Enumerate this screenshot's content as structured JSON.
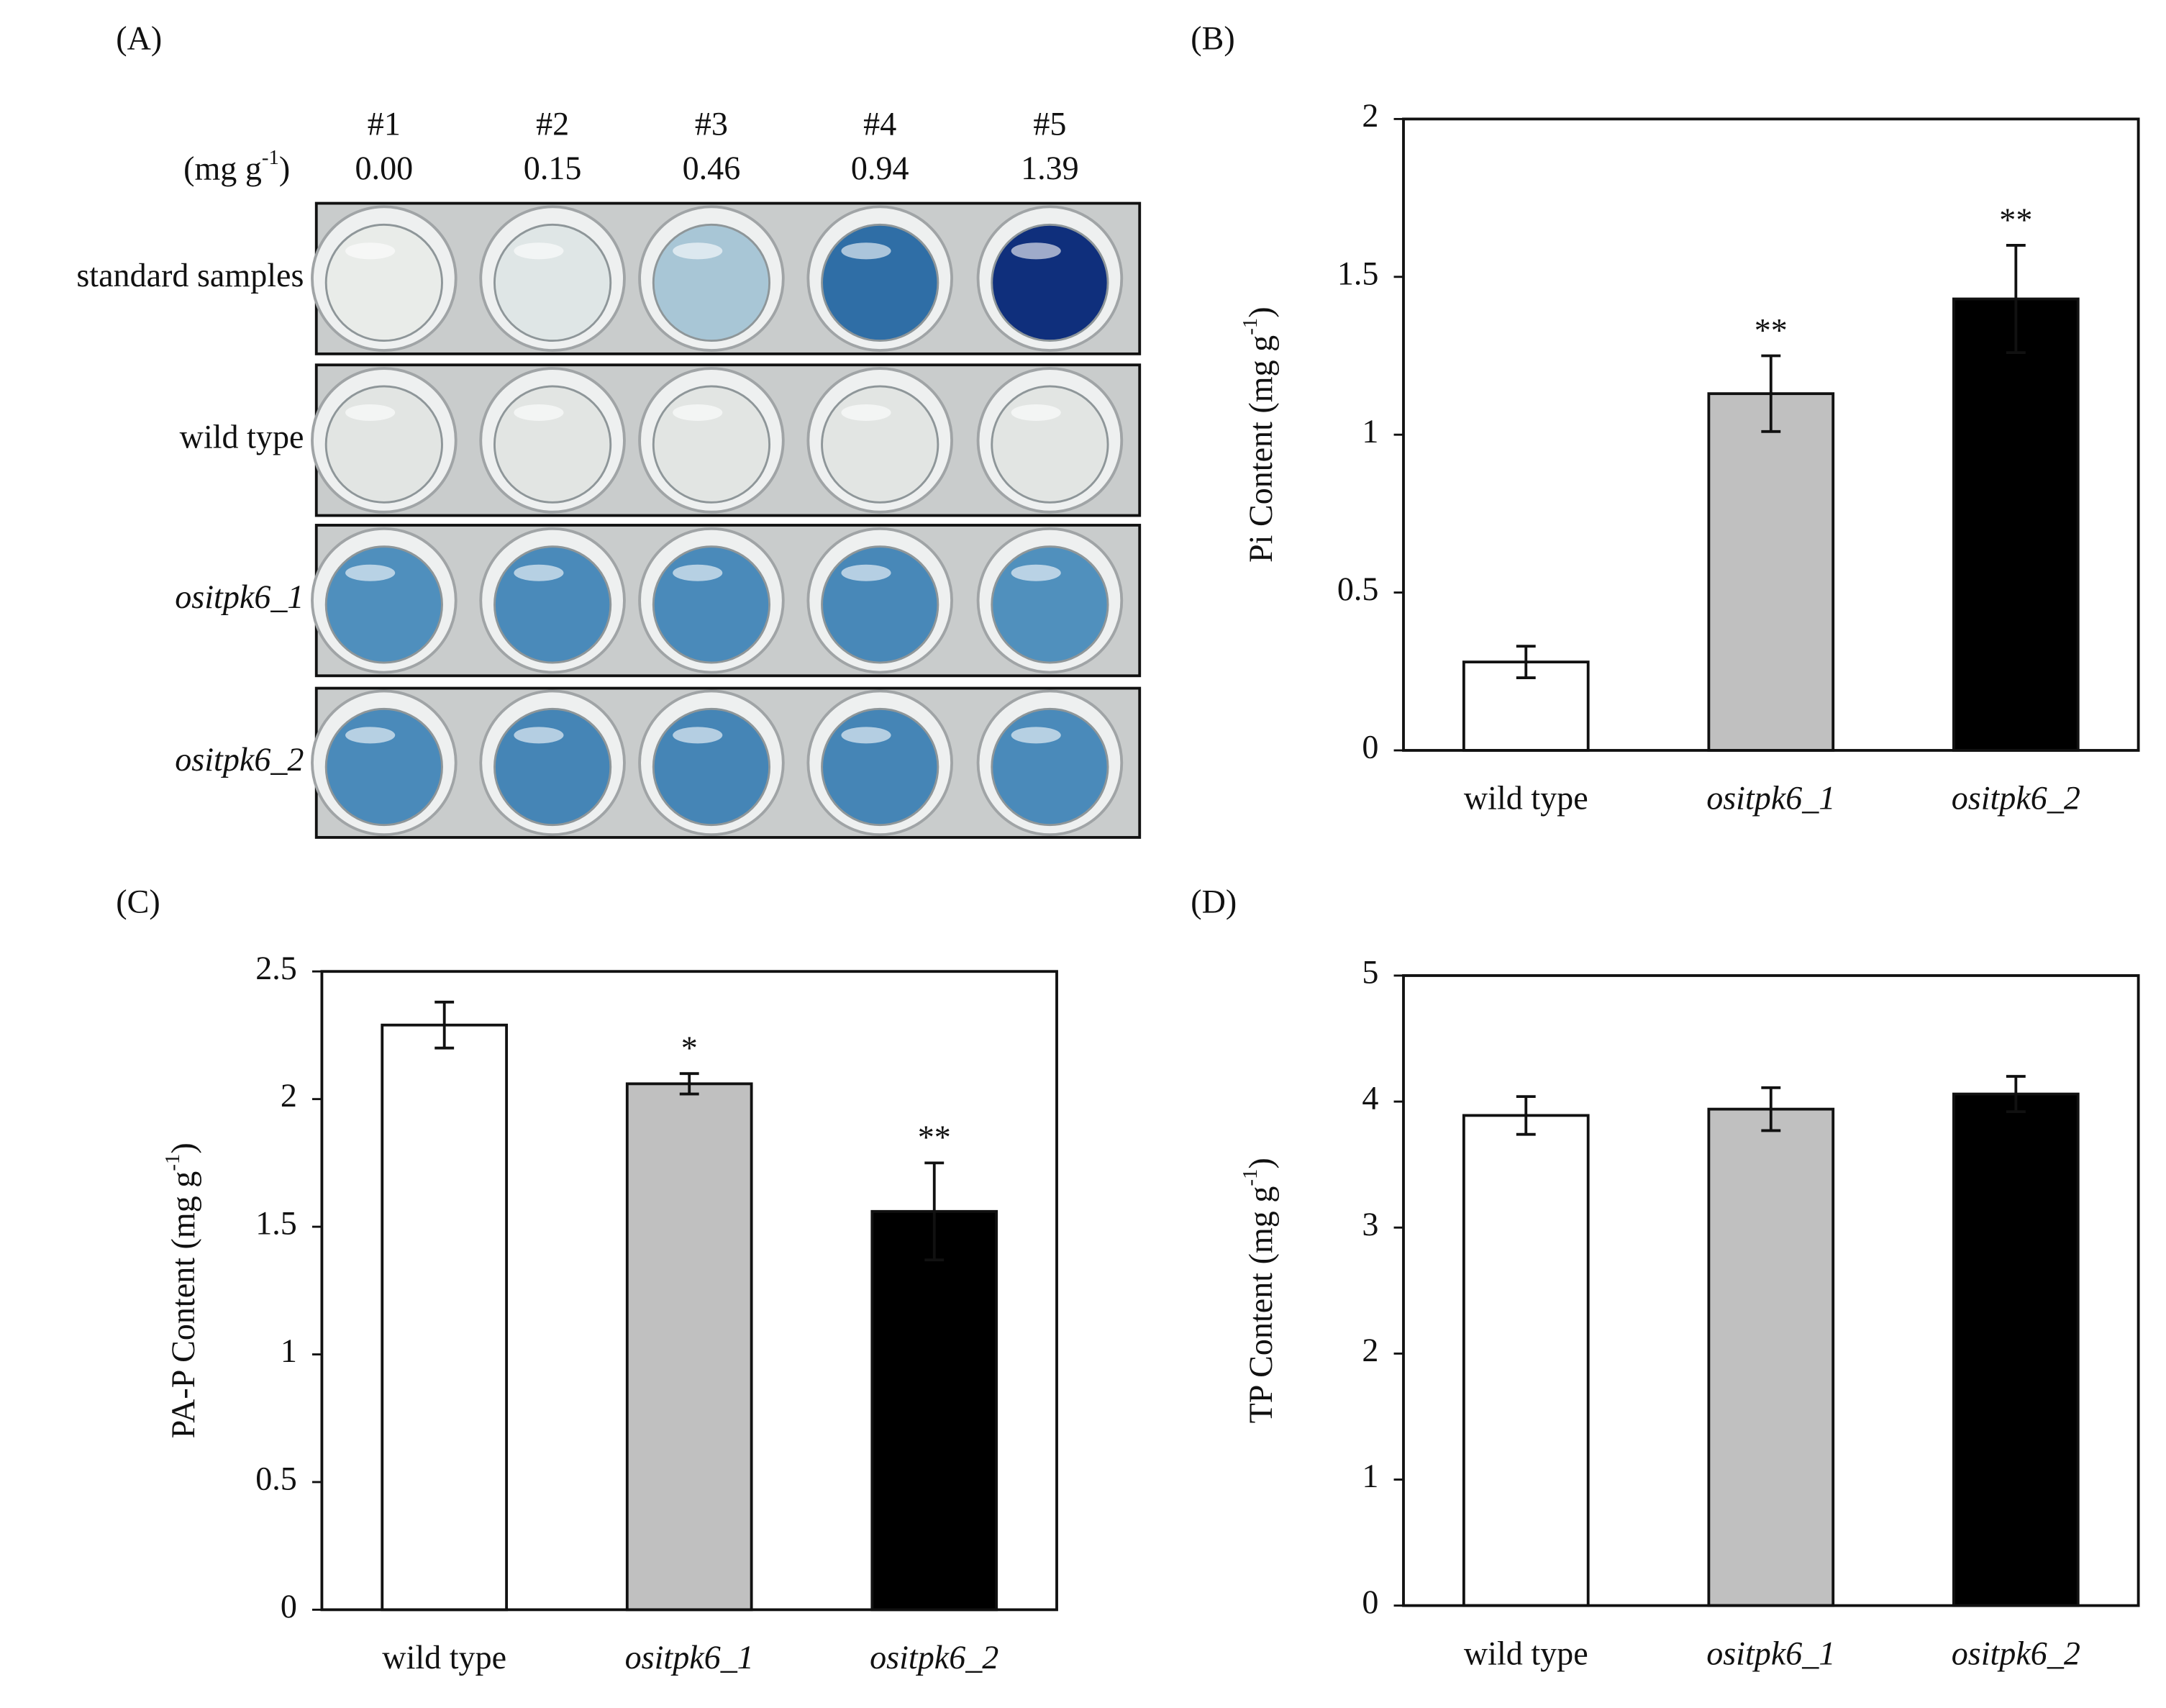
{
  "panel_a": {
    "label": "(A)",
    "unit": {
      "main": "(mg g",
      "sup": "-1",
      "end": ")"
    },
    "columns": [
      {
        "id": "#1",
        "value": "0.00"
      },
      {
        "id": "#2",
        "value": "0.15"
      },
      {
        "id": "#3",
        "value": "0.46"
      },
      {
        "id": "#4",
        "value": "0.94"
      },
      {
        "id": "#5",
        "value": "1.39"
      }
    ],
    "rows": [
      "standard samples",
      "wild type",
      "ositpk6_1",
      "ositpk6_2"
    ]
  },
  "chart_data": [
    {
      "type": "bar",
      "panel": "(B)",
      "ylabel": {
        "main": "Pi Content (mg g",
        "sup": "-1",
        "end": ")"
      },
      "categories": [
        "wild type",
        "ositpk6_1",
        "ositpk6_2"
      ],
      "values": [
        0.28,
        1.13,
        1.43
      ],
      "errors": [
        0.05,
        0.12,
        0.17
      ],
      "annotations": [
        null,
        "**",
        "**"
      ],
      "colors": [
        "#ffffff",
        "#c0c0c0",
        "#000000"
      ],
      "ylim": [
        0,
        2
      ],
      "yticks": [
        0,
        0.5,
        1,
        1.5,
        2
      ]
    },
    {
      "type": "bar",
      "panel": "(C)",
      "ylabel": {
        "main": "PA-P Content (mg g",
        "sup": "-1",
        "end": ")"
      },
      "categories": [
        "wild type",
        "ositpk6_1",
        "ositpk6_2"
      ],
      "values": [
        2.29,
        2.06,
        1.56
      ],
      "errors": [
        0.09,
        0.04,
        0.19
      ],
      "annotations": [
        null,
        "*",
        "**"
      ],
      "colors": [
        "#ffffff",
        "#c0c0c0",
        "#000000"
      ],
      "ylim": [
        0,
        2.5
      ],
      "yticks": [
        0,
        0.5,
        1,
        1.5,
        2,
        2.5
      ]
    },
    {
      "type": "bar",
      "panel": "(D)",
      "ylabel": {
        "main": "TP Content (mg g",
        "sup": "-1",
        "end": ")"
      },
      "categories": [
        "wild type",
        "ositpk6_1",
        "ositpk6_2"
      ],
      "values": [
        3.89,
        3.94,
        4.06
      ],
      "errors": [
        0.15,
        0.17,
        0.14
      ],
      "annotations": [
        null,
        null,
        null
      ],
      "colors": [
        "#ffffff",
        "#c0c0c0",
        "#000000"
      ],
      "ylim": [
        0,
        5
      ],
      "yticks": [
        0,
        1,
        2,
        3,
        4,
        5
      ]
    }
  ]
}
